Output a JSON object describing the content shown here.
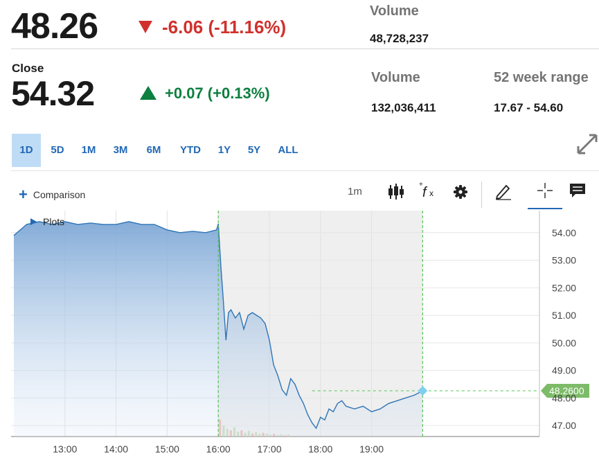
{
  "quote": {
    "last_price": "48.26",
    "change": "-6.06 (-11.16%)",
    "volume_label": "Volume",
    "volume": "48,728,237"
  },
  "close": {
    "label": "Close",
    "price": "54.32",
    "change": "+0.07 (+0.13%)",
    "volume_label": "Volume",
    "volume": "132,036,411",
    "range_label": "52 week range",
    "range": "17.67 - 54.60"
  },
  "ranges": [
    "1D",
    "5D",
    "1M",
    "3M",
    "6M",
    "YTD",
    "1Y",
    "5Y",
    "ALL"
  ],
  "active_range": "1D",
  "toolbar": {
    "comparison_label": "Comparison",
    "interval_label": "1m",
    "plots_label": "Plots",
    "icons": [
      "candlestick-icon",
      "function-icon",
      "gear-icon",
      "pencil-icon",
      "crosshair-icon",
      "comment-icon",
      "expand-icon",
      "plus-icon"
    ]
  },
  "colors": {
    "down": "#d0312d",
    "up": "#0d7f3f",
    "accent": "#2168b5",
    "line": "#2f74b5",
    "price_tag": "#7dbb68",
    "session_line": "#55c455"
  },
  "chart_data": {
    "type": "area",
    "x_ticks": [
      "13:00",
      "14:00",
      "15:00",
      "16:00",
      "17:00",
      "18:00",
      "19:00"
    ],
    "y_ticks": [
      "54.00",
      "53.00",
      "52.00",
      "51.00",
      "50.00",
      "49.00",
      "48.00",
      "47.00"
    ],
    "ylim": [
      46.6,
      54.8
    ],
    "current_price_tag": "48.2600",
    "grid": true,
    "x_start": "12:00",
    "market_close": "16:00",
    "last_time": "20:00",
    "series": [
      {
        "x": [
          "12:00",
          "12:15",
          "12:30",
          "12:45",
          "13:00",
          "13:15",
          "13:30",
          "13:45",
          "14:00",
          "14:15",
          "14:30",
          "14:45",
          "15:00",
          "15:15",
          "15:30",
          "15:45",
          "15:58",
          "16:00",
          "16:03",
          "16:06",
          "16:09",
          "16:12",
          "16:15",
          "16:20",
          "16:25",
          "16:30",
          "16:35",
          "16:40",
          "16:45",
          "16:50",
          "16:55",
          "17:00",
          "17:05",
          "17:10",
          "17:15",
          "17:20",
          "17:25",
          "17:30",
          "17:35",
          "17:40",
          "17:45",
          "17:50",
          "17:55",
          "18:00",
          "18:05",
          "18:10",
          "18:15",
          "18:20",
          "18:25",
          "18:30",
          "18:40",
          "18:50",
          "19:00",
          "19:10",
          "19:20",
          "19:30",
          "19:40",
          "19:50",
          "20:00"
        ],
        "values": [
          53.9,
          54.3,
          54.4,
          54.3,
          54.4,
          54.3,
          54.35,
          54.3,
          54.3,
          54.4,
          54.3,
          54.3,
          54.1,
          54.0,
          54.05,
          54.0,
          54.1,
          54.32,
          52.8,
          51.5,
          50.1,
          51.1,
          51.2,
          50.9,
          51.1,
          50.5,
          51.0,
          51.1,
          51.0,
          50.9,
          50.7,
          50.1,
          49.2,
          48.8,
          48.3,
          48.1,
          48.7,
          48.5,
          48.1,
          47.8,
          47.4,
          47.1,
          46.9,
          47.3,
          47.2,
          47.6,
          47.5,
          47.8,
          47.9,
          47.7,
          47.6,
          47.7,
          47.5,
          47.6,
          47.8,
          47.9,
          48.0,
          48.1,
          48.26
        ]
      }
    ]
  }
}
